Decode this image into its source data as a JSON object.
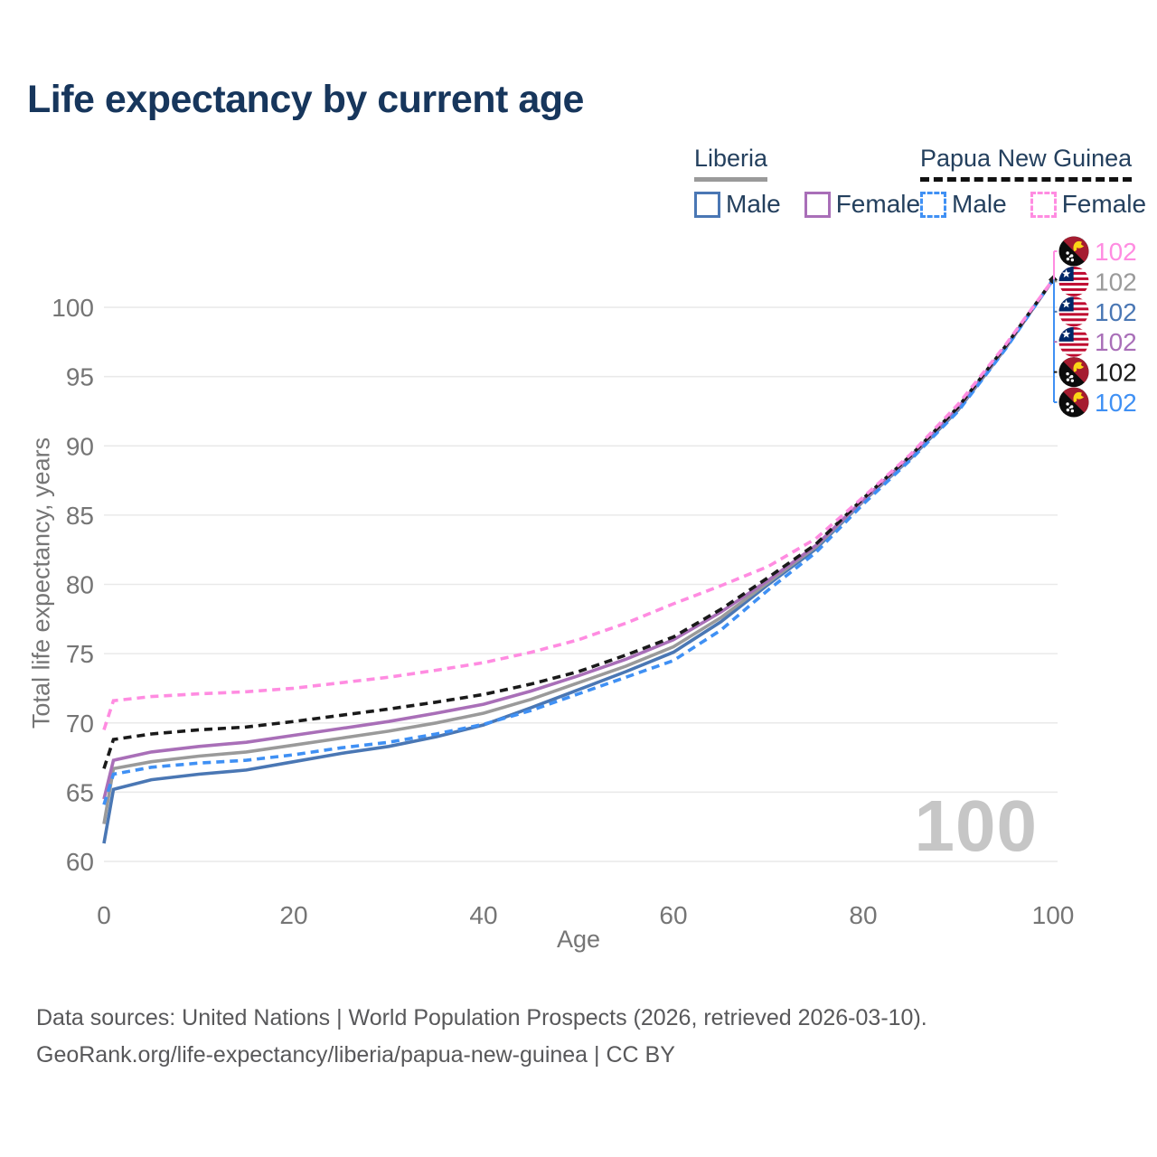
{
  "header": {
    "title": "Life expectancy by current age"
  },
  "legend": {
    "groups": [
      {
        "key": "liberia",
        "label": "Liberia",
        "underline_style": "solid",
        "underline_color": "#9a9a9a",
        "items": [
          {
            "key": "male",
            "label": "Male",
            "color": "#4a77b4",
            "dash": false
          },
          {
            "key": "female",
            "label": "Female",
            "color": "#a96fb8",
            "dash": false
          }
        ]
      },
      {
        "key": "png",
        "label": "Papua New Guinea",
        "underline_style": "dashed",
        "underline_color": "#111111",
        "items": [
          {
            "key": "male",
            "label": "Male",
            "color": "#3f90f4",
            "dash": true
          },
          {
            "key": "female",
            "label": "Female",
            "color": "#ff8ce1",
            "dash": true
          }
        ]
      }
    ]
  },
  "chart_data": {
    "type": "line",
    "title": "Life expectancy by current age",
    "xlabel": "Age",
    "ylabel": "Total life expectancy, years",
    "xlim": [
      0,
      100
    ],
    "ylim": [
      60,
      103
    ],
    "xticks": [
      0,
      20,
      40,
      60,
      80,
      100
    ],
    "yticks": [
      60,
      65,
      70,
      75,
      80,
      85,
      90,
      95,
      100
    ],
    "grid": true,
    "legend_position": "top-right",
    "x": [
      0,
      1,
      5,
      10,
      15,
      20,
      25,
      30,
      35,
      40,
      45,
      50,
      55,
      60,
      65,
      70,
      75,
      80,
      85,
      90,
      95,
      100
    ],
    "series": [
      {
        "id": "liberia_male",
        "name": "Liberia Male",
        "color": "#4a77b4",
        "dash": false,
        "values": [
          61.3,
          65.2,
          65.9,
          66.3,
          66.6,
          67.2,
          67.8,
          68.3,
          69.0,
          69.85,
          71.1,
          72.4,
          73.7,
          75.1,
          77.3,
          80.0,
          82.55,
          86.0,
          89.1,
          92.6,
          97.05,
          102
        ]
      },
      {
        "id": "liberia_all",
        "name": "Liberia",
        "color": "#9a9a9a",
        "dash": false,
        "values": [
          62.7,
          66.7,
          67.2,
          67.6,
          67.9,
          68.4,
          68.9,
          69.4,
          70.0,
          70.7,
          71.7,
          72.9,
          74.1,
          75.5,
          77.6,
          80.15,
          82.7,
          86.05,
          89.2,
          92.7,
          97.1,
          102
        ]
      },
      {
        "id": "liberia_female",
        "name": "Liberia Female",
        "color": "#a96fb8",
        "dash": false,
        "values": [
          64.5,
          67.3,
          67.9,
          68.3,
          68.6,
          69.1,
          69.6,
          70.1,
          70.7,
          71.35,
          72.3,
          73.4,
          74.6,
          76.0,
          78.0,
          80.3,
          82.8,
          86.1,
          89.25,
          92.75,
          97.15,
          102
        ]
      },
      {
        "id": "png_male",
        "name": "Papua New Guinea Male",
        "color": "#3f90f4",
        "dash": true,
        "values": [
          64.1,
          66.3,
          66.8,
          67.1,
          67.3,
          67.7,
          68.2,
          68.6,
          69.2,
          69.9,
          70.9,
          72.1,
          73.3,
          74.5,
          76.7,
          79.6,
          82.3,
          85.8,
          89.0,
          92.5,
          97.0,
          102
        ]
      },
      {
        "id": "png_all",
        "name": "Papua New Guinea",
        "color": "#1a1a1a",
        "dash": true,
        "values": [
          66.7,
          68.8,
          69.2,
          69.5,
          69.7,
          70.1,
          70.55,
          71.0,
          71.5,
          72.05,
          72.8,
          73.7,
          74.9,
          76.2,
          78.2,
          80.5,
          82.9,
          86.2,
          89.3,
          92.8,
          97.2,
          102
        ]
      },
      {
        "id": "png_female",
        "name": "Papua New Guinea Female",
        "color": "#ff8ce1",
        "dash": true,
        "values": [
          69.5,
          71.6,
          71.9,
          72.1,
          72.25,
          72.5,
          72.9,
          73.3,
          73.8,
          74.35,
          75.1,
          76.0,
          77.2,
          78.6,
          79.9,
          81.3,
          83.3,
          86.3,
          89.4,
          93.0,
          97.3,
          102
        ]
      }
    ],
    "end_labels": [
      {
        "series": "png_female",
        "flag": "pg",
        "value": "102",
        "color": "#ff8ce1"
      },
      {
        "series": "liberia_all",
        "flag": "lr",
        "value": "102",
        "color": "#9a9a9a"
      },
      {
        "series": "liberia_male",
        "flag": "lr",
        "value": "102",
        "color": "#4a77b4"
      },
      {
        "series": "liberia_female",
        "flag": "lr",
        "value": "102",
        "color": "#a96fb8"
      },
      {
        "series": "png_all",
        "flag": "pg",
        "value": "102",
        "color": "#1a1a1a"
      },
      {
        "series": "png_male",
        "flag": "pg",
        "value": "102",
        "color": "#3f90f4"
      }
    ],
    "watermark": "100"
  },
  "footer": {
    "line1": "Data sources: United Nations | World Population Prospects (2026, retrieved 2026-03-10).",
    "line2": "GeoRank.org/life-expectancy/liberia/papua-new-guinea | CC BY"
  }
}
